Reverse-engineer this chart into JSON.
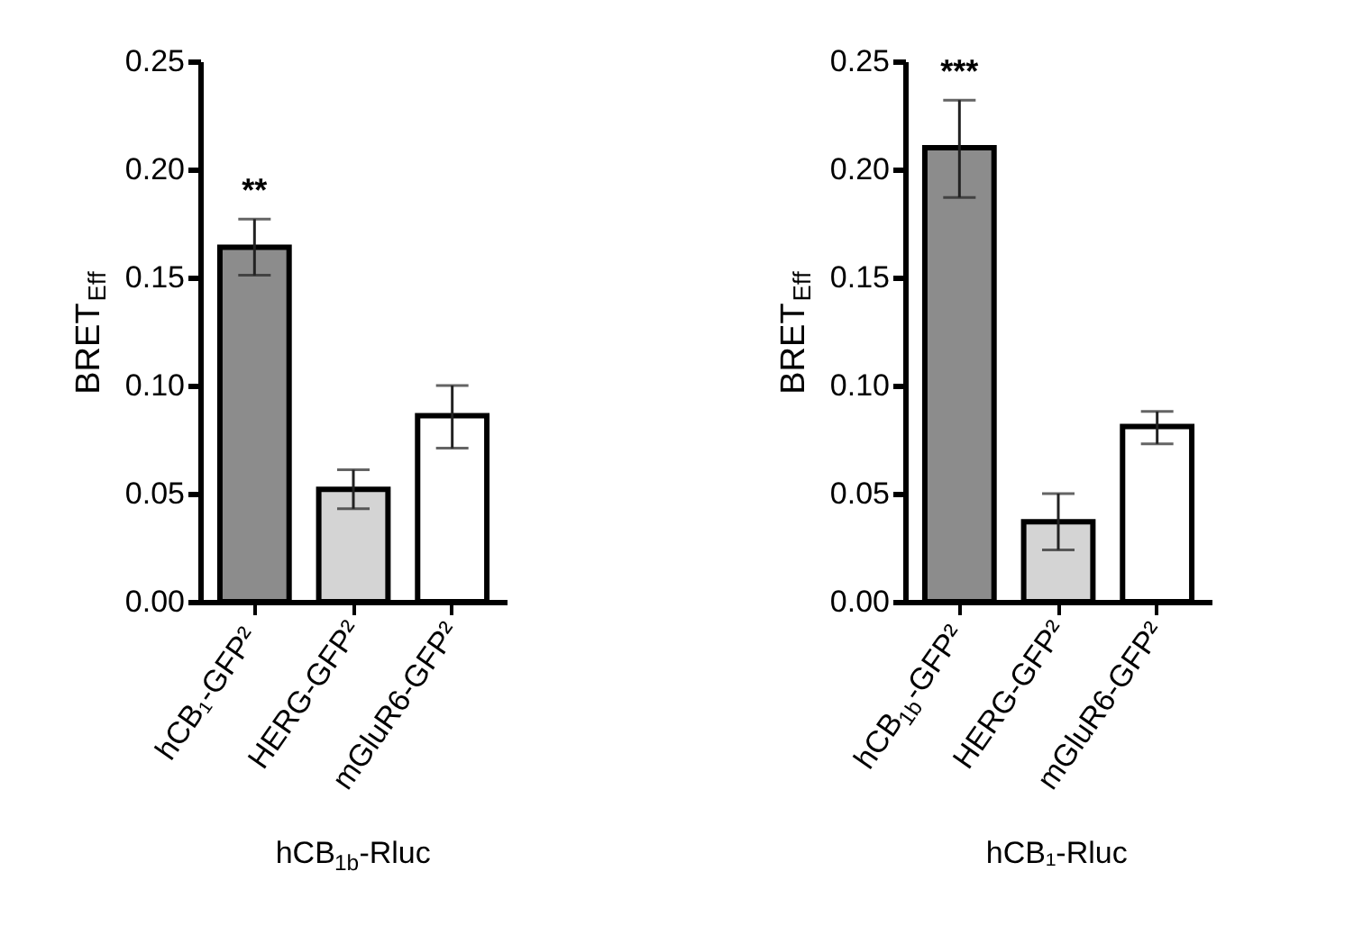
{
  "chart_data": [
    {
      "type": "bar",
      "categories": [
        "hCB₁-GFP²",
        "HERG-GFP²",
        "mGluR6-GFP²"
      ],
      "values": [
        0.164,
        0.052,
        0.086
      ],
      "colors": [
        "#8c8c8c",
        "#d4d4d4",
        "#ffffff"
      ],
      "errors": [
        [
          0.151,
          0.177
        ],
        [
          0.043,
          0.061
        ],
        [
          0.071,
          0.1
        ]
      ],
      "ylabel": "BRET$_{Eff}$",
      "xlabel": "hCB$_{1b}$-Rluc",
      "ylim": [
        0,
        0.25
      ],
      "yticks": [
        {
          "value": 0,
          "label": "0.00"
        },
        {
          "value": 0.05,
          "label": "0.05"
        },
        {
          "value": 0.1,
          "label": "0.10"
        },
        {
          "value": 0.15,
          "label": "0.15"
        },
        {
          "value": 0.2,
          "label": "0.20"
        },
        {
          "value": 0.25,
          "label": "0.25"
        }
      ],
      "grid": false,
      "annotations": [
        {
          "text": "**",
          "x": "hCB₁-GFP²",
          "y": 0.164
        }
      ]
    },
    {
      "type": "bar",
      "categories": [
        "hCB$_{1b}$-GFP²",
        "HERG-GFP²",
        "mGluR6-GFP²"
      ],
      "values": [
        0.21,
        0.037,
        0.081
      ],
      "colors": [
        "#8c8c8c",
        "#d4d4d4",
        "#ffffff"
      ],
      "errors": [
        [
          0.187,
          0.232
        ],
        [
          0.024,
          0.05
        ],
        [
          0.073,
          0.088
        ]
      ],
      "ylabel": "BRET$_{Eff}$",
      "xlabel": "hCB₁-Rluc",
      "ylim": [
        0,
        0.25
      ],
      "yticks": [
        {
          "value": 0,
          "label": "0.00"
        },
        {
          "value": 0.05,
          "label": "0.05"
        },
        {
          "value": 0.1,
          "label": "0.10"
        },
        {
          "value": 0.15,
          "label": "0.15"
        },
        {
          "value": 0.2,
          "label": "0.20"
        },
        {
          "value": 0.25,
          "label": "0.25"
        }
      ],
      "grid": false,
      "annotations": [
        {
          "text": "***",
          "x": "hCB$_{1b}$-GFP²",
          "y": 0.21
        }
      ]
    }
  ]
}
